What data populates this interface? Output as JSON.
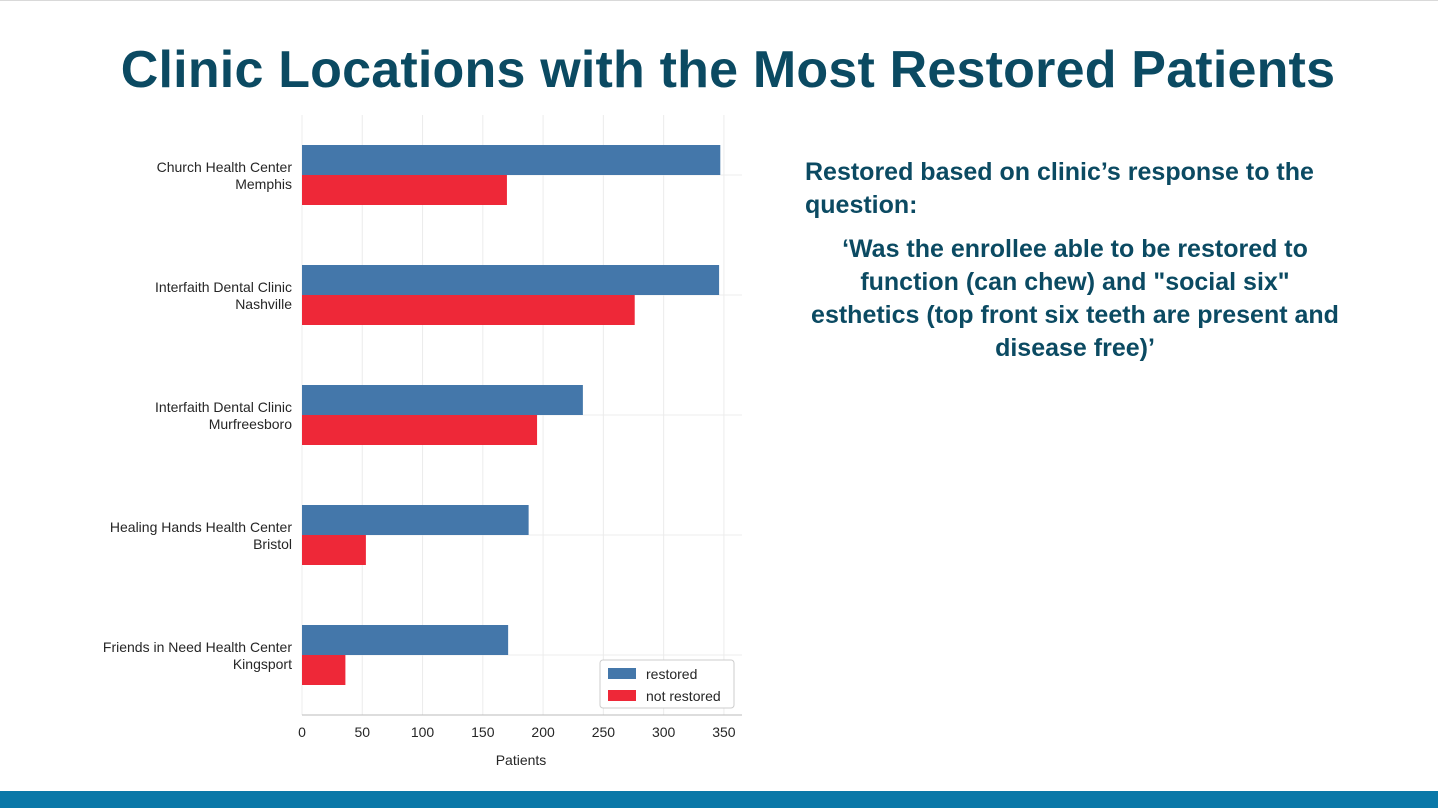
{
  "slide": {
    "title": "Clinic Locations with the Most Restored Patients",
    "note_heading": "Restored based on clinic’s response to the question:",
    "note_quote": "‘Was the enrollee able to be restored to function (can chew) and \"social six\" esthetics (top front six teeth are present and disease free)’",
    "accent_color": "#0b4a62",
    "footer_color": "#0a78a8"
  },
  "chart_data": {
    "type": "bar",
    "orientation": "horizontal",
    "categories": [
      "Church Health Center\nMemphis",
      "Interfaith Dental Clinic\nNashville",
      "Interfaith Dental Clinic\nMurfreesboro",
      "Healing Hands Health Center\nBristol",
      "Friends in Need Health Center\nKingsport"
    ],
    "series": [
      {
        "name": "restored",
        "color": "#4477aa",
        "values": [
          347,
          346,
          233,
          188,
          171
        ]
      },
      {
        "name": "not restored",
        "color": "#ee2838",
        "values": [
          170,
          276,
          195,
          53,
          36
        ]
      }
    ],
    "xlabel": "Patients",
    "ylabel": "",
    "xlim": [
      0,
      365
    ],
    "xticks": [
      0,
      50,
      100,
      150,
      200,
      250,
      300,
      350
    ],
    "grid": true,
    "legend_position": "bottom-right"
  }
}
